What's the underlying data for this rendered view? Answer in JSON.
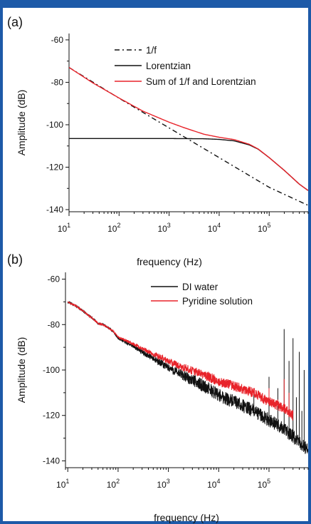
{
  "chart_data": [
    {
      "panel_label": "(a)",
      "type": "line",
      "x_scale": "log",
      "xlabel": "frequency (Hz)",
      "ylabel": "Amplitude (dB)",
      "xlim": [
        10,
        600000
      ],
      "ylim": [
        -141,
        -57
      ],
      "x_ticks": [
        10,
        100,
        1000,
        10000,
        100000
      ],
      "x_tick_labels": [
        {
          "base": "10",
          "exp": "1"
        },
        {
          "base": "10",
          "exp": "2"
        },
        {
          "base": "10",
          "exp": "3"
        },
        {
          "base": "10",
          "exp": "4"
        },
        {
          "base": "10",
          "exp": "5"
        }
      ],
      "y_ticks": [
        -60,
        -80,
        -100,
        -120,
        -140
      ],
      "y_tick_labels": [
        "-60",
        "-80",
        "-100",
        "-120",
        "-140"
      ],
      "grid": false,
      "legend_position": "top-right",
      "series": [
        {
          "name": "1/f",
          "color": "#111111",
          "style": "dash-dot",
          "x": [
            10,
            100,
            1000,
            10000,
            100000,
            600000
          ],
          "y": [
            -73,
            -87.5,
            -101.5,
            -115.5,
            -129.5,
            -138
          ]
        },
        {
          "name": "Lorentzian",
          "color": "#111111",
          "style": "solid",
          "x": [
            10,
            1000,
            5000,
            10000,
            20000,
            40000,
            60000,
            100000,
            200000,
            400000,
            600000
          ],
          "y": [
            -106.5,
            -106.5,
            -106.6,
            -106.9,
            -107.6,
            -109.5,
            -111.5,
            -115.5,
            -121.5,
            -128,
            -131
          ]
        },
        {
          "name": "Sum of 1/f and Lorentzian",
          "color": "#e8232a",
          "style": "solid",
          "x": [
            10,
            30,
            100,
            300,
            1000,
            2000,
            5000,
            10000,
            20000,
            40000,
            60000,
            100000,
            200000,
            400000,
            600000
          ],
          "y": [
            -73,
            -80.3,
            -87.4,
            -93.6,
            -98.8,
            -101.4,
            -104.5,
            -105.9,
            -107,
            -109.2,
            -111.4,
            -115.5,
            -121.5,
            -128,
            -131
          ]
        }
      ]
    },
    {
      "panel_label": "(b)",
      "type": "line",
      "x_scale": "log",
      "xlabel": "frequency (Hz)",
      "ylabel": "Amplitude (dB)",
      "xlim": [
        9,
        600000
      ],
      "ylim": [
        -143,
        -57
      ],
      "x_ticks": [
        10,
        100,
        1000,
        10000,
        100000
      ],
      "x_tick_labels": [
        {
          "base": "10",
          "exp": "1"
        },
        {
          "base": "10",
          "exp": "2"
        },
        {
          "base": "10",
          "exp": "3"
        },
        {
          "base": "10",
          "exp": "4"
        },
        {
          "base": "10",
          "exp": "5"
        }
      ],
      "y_ticks": [
        -60,
        -80,
        -100,
        -120,
        -140
      ],
      "y_tick_labels": [
        "-60",
        "-80",
        "-100",
        "-120",
        "-140"
      ],
      "grid": false,
      "legend_position": "top-right",
      "series": [
        {
          "name": "DI water",
          "color": "#111111",
          "x": [
            10,
            15,
            20,
            30,
            40,
            50,
            60,
            80,
            100,
            200,
            500,
            1000,
            2000,
            5000,
            10000,
            20000,
            50000,
            100000,
            200000,
            400000,
            600000
          ],
          "y": [
            -70,
            -72,
            -74,
            -77,
            -79.5,
            -80,
            -81,
            -83,
            -86,
            -89.5,
            -95,
            -99,
            -102.5,
            -107,
            -111,
            -114,
            -118,
            -122,
            -126,
            -132,
            -135
          ],
          "noise_db": 3,
          "spikes": [
            {
              "x": 50000,
              "y": -111
            },
            {
              "x": 60000,
              "y": -117
            },
            {
              "x": 100000,
              "y": -103
            },
            {
              "x": 150000,
              "y": -108
            },
            {
              "x": 200000,
              "y": -82
            },
            {
              "x": 250000,
              "y": -96
            },
            {
              "x": 300000,
              "y": -86
            },
            {
              "x": 350000,
              "y": -112
            },
            {
              "x": 400000,
              "y": -92
            },
            {
              "x": 450000,
              "y": -118
            },
            {
              "x": 500000,
              "y": -100
            }
          ]
        },
        {
          "name": "Pyridine solution",
          "color": "#e8232a",
          "x": [
            10,
            15,
            20,
            30,
            40,
            50,
            60,
            80,
            100,
            200,
            500,
            1000,
            2000,
            5000,
            10000,
            20000,
            50000,
            100000,
            200000,
            300000
          ],
          "y": [
            -70,
            -72,
            -74,
            -77,
            -79.5,
            -80,
            -81,
            -83,
            -85.5,
            -88.5,
            -93,
            -96,
            -99,
            -102,
            -105,
            -107,
            -110,
            -114,
            -117,
            -120
          ],
          "noise_db": 2.2,
          "spikes": [
            {
              "x": 50000,
              "y": -108
            },
            {
              "x": 100000,
              "y": -108
            },
            {
              "x": 150000,
              "y": -113
            },
            {
              "x": 200000,
              "y": -104
            },
            {
              "x": 250000,
              "y": -110
            }
          ]
        }
      ]
    }
  ]
}
